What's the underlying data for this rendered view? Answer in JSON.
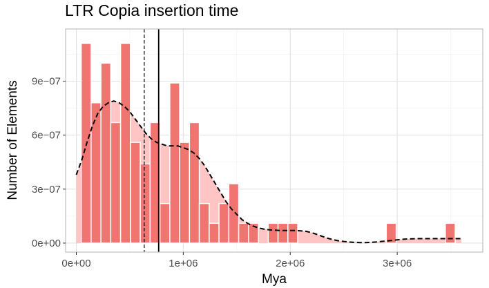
{
  "chart_data": {
    "type": "bar",
    "title": "LTR Copia insertion time",
    "xlabel": "Mya",
    "ylabel": "Number of Elements",
    "xlim": [
      -100000,
      3800000
    ],
    "ylim": [
      -5e-08,
      1.19e-06
    ],
    "x_ticks": [
      0,
      1000000,
      2000000,
      3000000
    ],
    "x_tick_labels": [
      "0e+00",
      "1e+06",
      "2e+06",
      "3e+06"
    ],
    "y_ticks": [
      0,
      3e-07,
      6e-07,
      9e-07
    ],
    "y_tick_labels": [
      "0e+00",
      "3e−07",
      "6e−07",
      "9e−07"
    ],
    "grid": true,
    "bin_width": 92000,
    "histogram": {
      "bin_centers": [
        92000,
        184000,
        276000,
        368000,
        460000,
        552000,
        644000,
        736000,
        828000,
        920000,
        1012000,
        1104000,
        1196000,
        1288000,
        1380000,
        1472000,
        1564000,
        1656000,
        1748000,
        1840000,
        1932000,
        2024000,
        2116000,
        2208000,
        2300000,
        2392000,
        2484000,
        2576000,
        2668000,
        2760000,
        2852000,
        2944000,
        3036000,
        3128000,
        3220000,
        3312000,
        3404000,
        3496000,
        3588000
      ],
      "values": [
        1.11e-06,
        7.8e-07,
        1e-06,
        6.7e-07,
        1.11e-06,
        5.6e-07,
        4.4e-07,
        6.7e-07,
        2.2e-07,
        8.9e-07,
        5.6e-07,
        6.7e-07,
        2.2e-07,
        1.1e-07,
        2.2e-07,
        3.3e-07,
        1.1e-07,
        1.1e-07,
        0,
        1.1e-07,
        1.1e-07,
        1.1e-07,
        0,
        0,
        0,
        0,
        0,
        0,
        0,
        0,
        0,
        1.1e-07,
        0,
        0,
        0,
        0,
        0,
        1.1e-07,
        0
      ]
    },
    "density": {
      "x": [
        0,
        50000,
        100000,
        150000,
        200000,
        250000,
        300000,
        350000,
        400000,
        450000,
        500000,
        550000,
        600000,
        650000,
        700000,
        750000,
        800000,
        850000,
        900000,
        950000,
        1000000,
        1050000,
        1100000,
        1150000,
        1200000,
        1250000,
        1300000,
        1350000,
        1400000,
        1450000,
        1500000,
        1550000,
        1600000,
        1650000,
        1700000,
        1750000,
        1800000,
        1850000,
        1900000,
        1950000,
        2000000,
        2050000,
        2100000,
        2150000,
        2200000,
        2250000,
        2300000,
        2350000,
        2400000,
        2450000,
        2500000,
        2550000,
        2600000,
        2650000,
        2700000,
        2750000,
        2800000,
        2850000,
        2900000,
        2950000,
        3000000,
        3050000,
        3100000,
        3150000,
        3200000,
        3250000,
        3300000,
        3350000,
        3400000,
        3450000,
        3500000,
        3550000,
        3600000
      ],
      "y": [
        3.8e-07,
        4.6e-07,
        5.6e-07,
        6.5e-07,
        7.2e-07,
        7.6e-07,
        7.8e-07,
        7.9e-07,
        7.8e-07,
        7.6e-07,
        7.3e-07,
        6.9e-07,
        6.5e-07,
        6.1e-07,
        5.8e-07,
        5.6e-07,
        5.5e-07,
        5.4e-07,
        5.4e-07,
        5.4e-07,
        5.3e-07,
        5.2e-07,
        5e-07,
        4.7e-07,
        4.3e-07,
        3.8e-07,
        3.3e-07,
        2.8e-07,
        2.3e-07,
        1.9e-07,
        1.6e-07,
        1.3e-07,
        1.1e-07,
        9.5e-08,
        8.5e-08,
        7.8e-08,
        7.4e-08,
        7.2e-08,
        7e-08,
        7e-08,
        7e-08,
        7e-08,
        6.8e-08,
        6.5e-08,
        5.8e-08,
        4.8e-08,
        3.7e-08,
        2.7e-08,
        1.9e-08,
        1.3e-08,
        9e-09,
        6e-09,
        4e-09,
        3e-09,
        3e-09,
        4e-09,
        6e-09,
        9e-09,
        1.2e-08,
        1.5e-08,
        1.8e-08,
        2.1e-08,
        2.3e-08,
        2.4e-08,
        2.5e-08,
        2.5e-08,
        2.5e-08,
        2.5e-08,
        2.5e-08,
        2.5e-08,
        2.5e-08,
        2.5e-08,
        2.5e-08
      ]
    },
    "vlines": [
      {
        "style": "dashed",
        "x": 635000
      },
      {
        "style": "solid",
        "x": 770000
      }
    ],
    "colors": {
      "bar_fill": "#F07470",
      "bar_outline": "#ffffff",
      "density_fill": "#FFC4C4",
      "density_line": "#000000",
      "grid": "#e3e3e3",
      "panel_border": "#b3b3b3"
    }
  }
}
